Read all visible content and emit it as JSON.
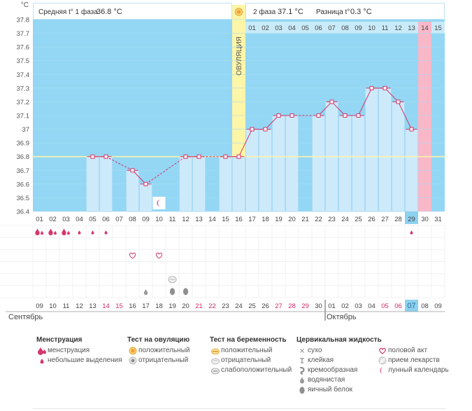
{
  "chart_data": {
    "type": "line",
    "title": "",
    "xlabel": "",
    "ylabel": "°C",
    "ylim": [
      36.4,
      37.8
    ],
    "y_ticks": [
      "36.4",
      "36.5",
      "36.6",
      "36.7",
      "36.8",
      "36.9",
      "37",
      "37.1",
      "37.2",
      "37.3",
      "37.4",
      "37.5",
      "37.6",
      "37.7",
      "37.8"
    ],
    "cycle_days": [
      "01",
      "02",
      "03",
      "04",
      "05",
      "06",
      "07",
      "08",
      "09",
      "10",
      "11",
      "12",
      "13",
      "14",
      "15",
      "16",
      "17",
      "18",
      "19",
      "20",
      "21",
      "22",
      "23",
      "24",
      "25",
      "26",
      "27",
      "28",
      "29",
      "30",
      "31"
    ],
    "temperatures": [
      null,
      null,
      null,
      null,
      36.8,
      36.8,
      null,
      36.7,
      36.6,
      null,
      null,
      36.8,
      36.8,
      null,
      36.8,
      36.8,
      37.0,
      37.0,
      37.1,
      37.1,
      null,
      37.1,
      37.2,
      37.1,
      37.1,
      37.3,
      37.3,
      37.2,
      37.0,
      null,
      null
    ],
    "coverline": 36.8,
    "ovulation_day": "16",
    "ovulation_label": "ОВУЛЯЦИЯ",
    "current_day": "29",
    "phase2_days": [
      "01",
      "02",
      "03",
      "04",
      "05",
      "06",
      "07",
      "08",
      "09",
      "10",
      "11",
      "12",
      "13",
      "14",
      "15"
    ],
    "phase2_highlight": "14",
    "dates": [
      "09",
      "10",
      "11",
      "12",
      "13",
      "14",
      "15",
      "16",
      "17",
      "18",
      "19",
      "20",
      "21",
      "22",
      "23",
      "24",
      "25",
      "26",
      "27",
      "28",
      "29",
      "30",
      "01",
      "02",
      "03",
      "04",
      "05",
      "06",
      "07",
      "08",
      "09"
    ],
    "weekend_flags": [
      0,
      0,
      0,
      0,
      0,
      1,
      1,
      0,
      0,
      0,
      0,
      0,
      1,
      1,
      0,
      0,
      0,
      0,
      1,
      1,
      1,
      0,
      0,
      0,
      0,
      0,
      1,
      1,
      0,
      0,
      0
    ],
    "today_date": "07",
    "month_left": "Сентябрь",
    "month_right": "Октябрь",
    "phase1_label": "Средняя t° 1 фаза",
    "phase1_value": "36.8 °C",
    "phase2_label": "2 фаза",
    "phase2_value": "37.1 °C",
    "diff_label": "Разница t°",
    "diff_value": "0.3 °C",
    "markers": {
      "menstruation_heavy": [
        "01",
        "02",
        "03"
      ],
      "menstruation_light": [
        "04",
        "05",
        "06",
        "29"
      ],
      "intercourse": [
        "08",
        "10"
      ],
      "pregnancy_test_negative": [
        "11"
      ],
      "fluid_watery": [
        "09"
      ],
      "fluid_egg_white": [
        "11",
        "12"
      ],
      "lunar": [
        "10"
      ]
    }
  },
  "legend": {
    "menstruation": {
      "title": "Менструация",
      "items": [
        "менструация",
        "небольшие выделения"
      ]
    },
    "ovulation_test": {
      "title": "Тест на овуляцию",
      "items": [
        "положительный",
        "отрицательный"
      ]
    },
    "pregnancy_test": {
      "title": "Тест на беременность",
      "items": [
        "положительный",
        "отрицательный",
        "слабоположительный"
      ]
    },
    "cervical_fluid": {
      "title": "Цервикальная жидкость",
      "items": [
        "сухо",
        "клейкая",
        "кремообразная",
        "водянистая",
        "яичный белок"
      ]
    },
    "other": {
      "items": [
        "половой акт",
        "прием лекарств",
        "лунный календарь"
      ]
    }
  },
  "colors": {
    "bar_fill": "#cdeafb",
    "bar_edge": "#a9d9f5",
    "blue_panel": "#93d7f4",
    "ovulation": "#fdf5a7",
    "line": "#d33366",
    "coverline": "#fff4a8",
    "highlight": "#f9b8c8",
    "today": "#8cd1f0",
    "weekend": "#d22a6a",
    "grid": "#f0f0f0"
  }
}
